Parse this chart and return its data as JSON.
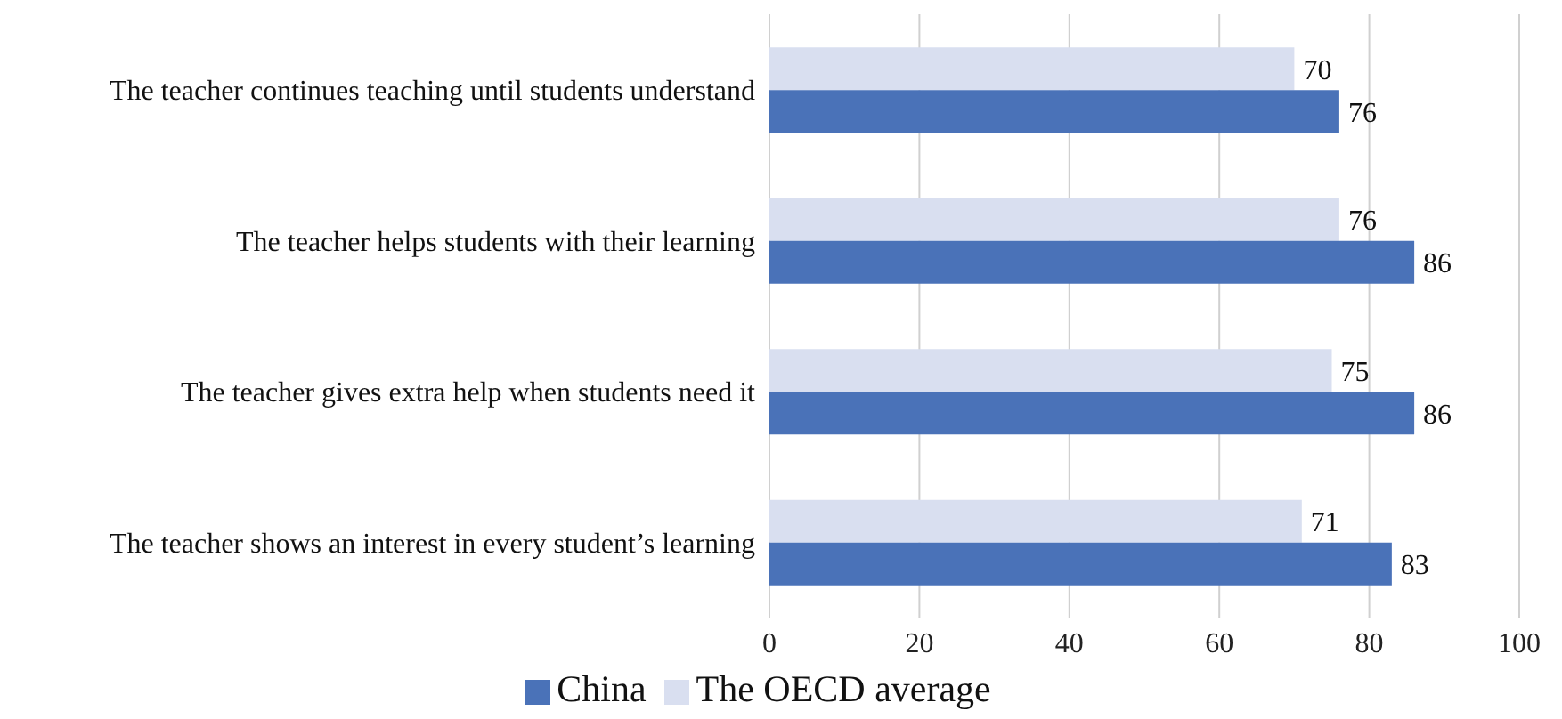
{
  "chart_data": {
    "type": "bar",
    "orientation": "horizontal",
    "categories": [
      "The teacher continues teaching until students understand",
      "The teacher helps students with their learning",
      "The teacher gives extra help when students need it",
      "The teacher shows an interest in every student’s learning"
    ],
    "series": [
      {
        "name": "The OECD average",
        "color": "#d9dff0",
        "values": [
          70,
          76,
          75,
          71
        ]
      },
      {
        "name": "China",
        "color": "#4a72b8",
        "values": [
          76,
          86,
          86,
          83
        ]
      }
    ],
    "xlim": [
      0,
      100
    ],
    "xticks": [
      0,
      20,
      40,
      60,
      80,
      100
    ],
    "grid": "x",
    "legend": "bottom",
    "data_labels": true
  }
}
